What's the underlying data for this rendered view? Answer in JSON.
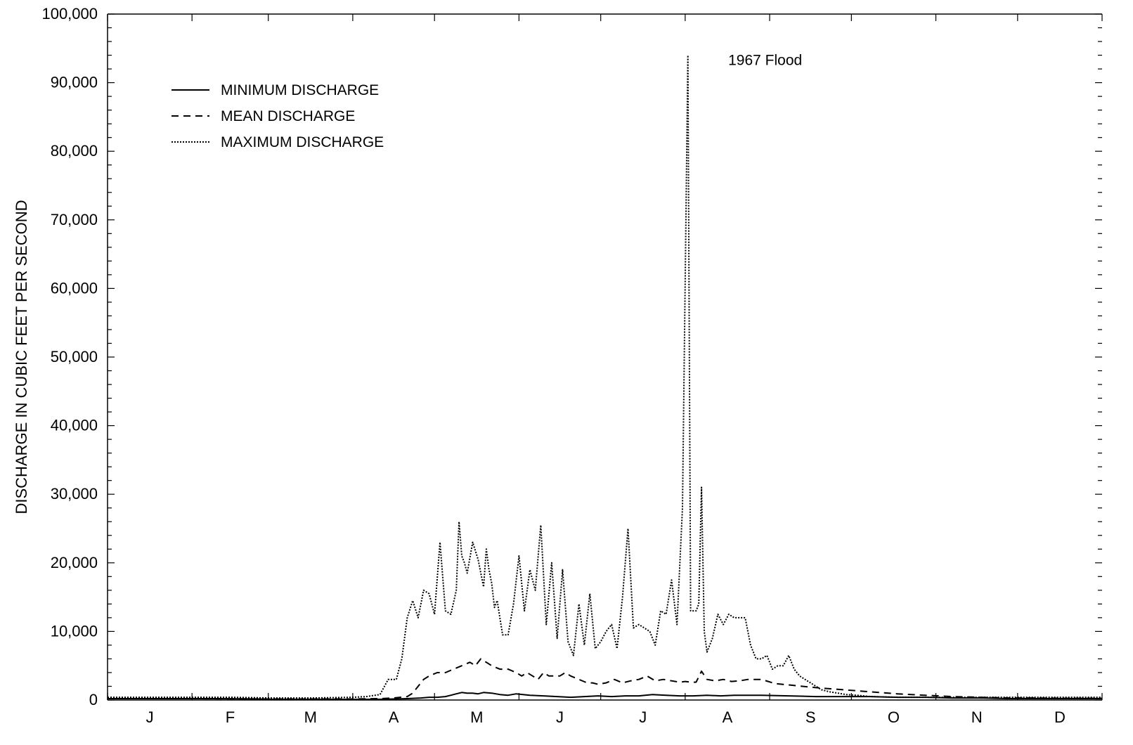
{
  "chart_data": {
    "type": "line",
    "title": "",
    "xlabel": "",
    "ylabel": "DISCHARGE IN CUBIC FEET PER SECOND",
    "ylim": [
      0,
      100000
    ],
    "yticks": [
      0,
      10000,
      20000,
      30000,
      40000,
      50000,
      60000,
      70000,
      80000,
      90000,
      100000
    ],
    "ytick_labels": [
      "0",
      "10,000",
      "20,000",
      "30,000",
      "40,000",
      "50,000",
      "60,000",
      "70,000",
      "80,000",
      "90,000",
      "100,000"
    ],
    "xlim": [
      0,
      365
    ],
    "month_labels": [
      "J",
      "F",
      "M",
      "A",
      "M",
      "J",
      "J",
      "A",
      "S",
      "O",
      "N",
      "D"
    ],
    "grid": false,
    "legend_position": "upper-left",
    "annotations": [
      {
        "text": "1967 Flood",
        "x": 218,
        "y": 94000
      }
    ],
    "series": [
      {
        "name": "MINIMUM DISCHARGE",
        "style": "solid",
        "x": [
          0,
          20,
          40,
          55,
          60,
          80,
          90,
          100,
          105,
          110,
          115,
          118,
          121,
          124,
          126,
          128,
          130,
          132,
          134,
          136,
          138,
          141,
          144,
          147,
          150,
          155,
          160,
          165,
          170,
          175,
          180,
          185,
          190,
          195,
          200,
          205,
          210,
          215,
          220,
          225,
          230,
          240,
          250,
          260,
          270,
          280,
          290,
          300,
          310,
          320,
          330,
          340,
          350,
          365
        ],
        "y": [
          200,
          200,
          200,
          150,
          100,
          100,
          100,
          100,
          150,
          200,
          300,
          400,
          400,
          500,
          700,
          900,
          1100,
          1000,
          1000,
          900,
          1100,
          1000,
          800,
          700,
          900,
          700,
          600,
          500,
          400,
          500,
          600,
          500,
          600,
          600,
          800,
          700,
          600,
          600,
          700,
          600,
          700,
          700,
          600,
          500,
          500,
          500,
          400,
          400,
          300,
          300,
          200,
          200,
          200,
          200
        ]
      },
      {
        "name": "MEAN DISCHARGE",
        "style": "dashed",
        "x": [
          0,
          30,
          60,
          90,
          100,
          105,
          110,
          112,
          114,
          116,
          118,
          121,
          124,
          127,
          130,
          133,
          135,
          137,
          139,
          141,
          144,
          147,
          150,
          152,
          154,
          156,
          158,
          160,
          162,
          164,
          166,
          168,
          170,
          173,
          176,
          178,
          180,
          183,
          186,
          189,
          192,
          195,
          198,
          201,
          204,
          207,
          210,
          212,
          214,
          216,
          218,
          220,
          223,
          226,
          229,
          232,
          235,
          240,
          245,
          250,
          255,
          260,
          270,
          280,
          290,
          300,
          310,
          320,
          330,
          340,
          350,
          365
        ],
        "y": [
          200,
          200,
          150,
          150,
          200,
          300,
          500,
          1000,
          2000,
          3000,
          3500,
          4000,
          4000,
          4500,
          5000,
          5500,
          5000,
          6000,
          5500,
          5000,
          4500,
          4500,
          4000,
          3500,
          4000,
          3500,
          3000,
          4000,
          3500,
          3500,
          3500,
          4000,
          3500,
          3000,
          2500,
          2500,
          2300,
          2500,
          3000,
          2500,
          2800,
          3000,
          3500,
          2800,
          3000,
          2800,
          2600,
          2700,
          2600,
          2600,
          4200,
          3000,
          2800,
          3000,
          2700,
          2800,
          3000,
          3000,
          2400,
          2200,
          2000,
          1800,
          1500,
          1200,
          900,
          700,
          500,
          400,
          300,
          300,
          250,
          250
        ]
      },
      {
        "name": "MAXIMUM DISCHARGE",
        "style": "dotted",
        "x": [
          0,
          15,
          30,
          45,
          60,
          75,
          90,
          95,
          100,
          103,
          106,
          108,
          110,
          112,
          114,
          116,
          118,
          120,
          122,
          124,
          126,
          128,
          129,
          130,
          131,
          132,
          134,
          136,
          138,
          139,
          140,
          141,
          142,
          143,
          144,
          145,
          147,
          149,
          151,
          153,
          155,
          157,
          159,
          161,
          163,
          165,
          167,
          169,
          171,
          173,
          175,
          177,
          179,
          181,
          183,
          185,
          187,
          189,
          191,
          193,
          195,
          197,
          199,
          201,
          203,
          205,
          207,
          209,
          211,
          213,
          214,
          215,
          216,
          217,
          218,
          219,
          220,
          222,
          224,
          226,
          228,
          230,
          232,
          234,
          236,
          238,
          240,
          242,
          244,
          246,
          248,
          250,
          252,
          254,
          256,
          258,
          260,
          262,
          265,
          268,
          271,
          275,
          280,
          290,
          300,
          310,
          320,
          330,
          340,
          350,
          365
        ],
        "y": [
          400,
          400,
          400,
          400,
          300,
          300,
          400,
          500,
          800,
          3000,
          3000,
          6000,
          12000,
          14500,
          12000,
          16000,
          15500,
          12500,
          23000,
          13000,
          12500,
          16000,
          26000,
          21000,
          20000,
          18500,
          23000,
          20500,
          16500,
          22000,
          19000,
          17000,
          13500,
          14500,
          12000,
          9500,
          9500,
          14000,
          21000,
          13000,
          19000,
          16000,
          25500,
          11000,
          20000,
          9000,
          19000,
          8500,
          6500,
          14000,
          8000,
          15500,
          7500,
          8500,
          10000,
          11000,
          7500,
          15000,
          25000,
          10500,
          11000,
          10500,
          10000,
          8000,
          13000,
          12500,
          17500,
          11000,
          28000,
          94000,
          13000,
          13000,
          13000,
          14000,
          31000,
          10000,
          7000,
          9000,
          12500,
          11000,
          12500,
          12000,
          12000,
          12000,
          8000,
          6000,
          6000,
          6500,
          4500,
          5000,
          5000,
          6500,
          4500,
          3500,
          3000,
          2500,
          2000,
          1500,
          1200,
          1000,
          800,
          700,
          500,
          400,
          400,
          400,
          400,
          400,
          400,
          400,
          400
        ]
      }
    ]
  }
}
